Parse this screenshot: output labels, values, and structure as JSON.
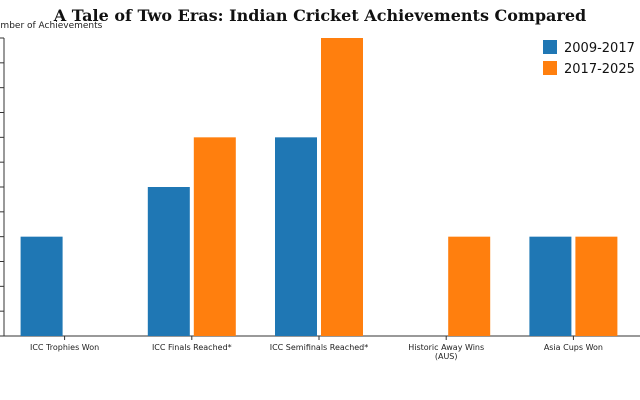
{
  "chart_data": {
    "type": "bar",
    "title": "A Tale of Two Eras: Indian Cricket Achievements Compared",
    "ylabel": "Number of Achievements",
    "xlabel": "",
    "categories": [
      [
        "ICC Trophies Won"
      ],
      [
        "ICC Finals Reached*"
      ],
      [
        "ICC Semifinals Reached*"
      ],
      [
        "Historic Away Wins",
        "(AUS)"
      ],
      [
        "Asia Cups Won"
      ]
    ],
    "series": [
      {
        "name": "2009-2017",
        "color": "#1f77b4",
        "values": [
          2,
          3,
          4,
          0,
          2
        ]
      },
      {
        "name": "2017-2025",
        "color": "#ff7f0e",
        "values": [
          0,
          4,
          6,
          2,
          2
        ]
      }
    ],
    "ylim": [
      0,
      6
    ],
    "grid": false,
    "legend": "top-right"
  }
}
